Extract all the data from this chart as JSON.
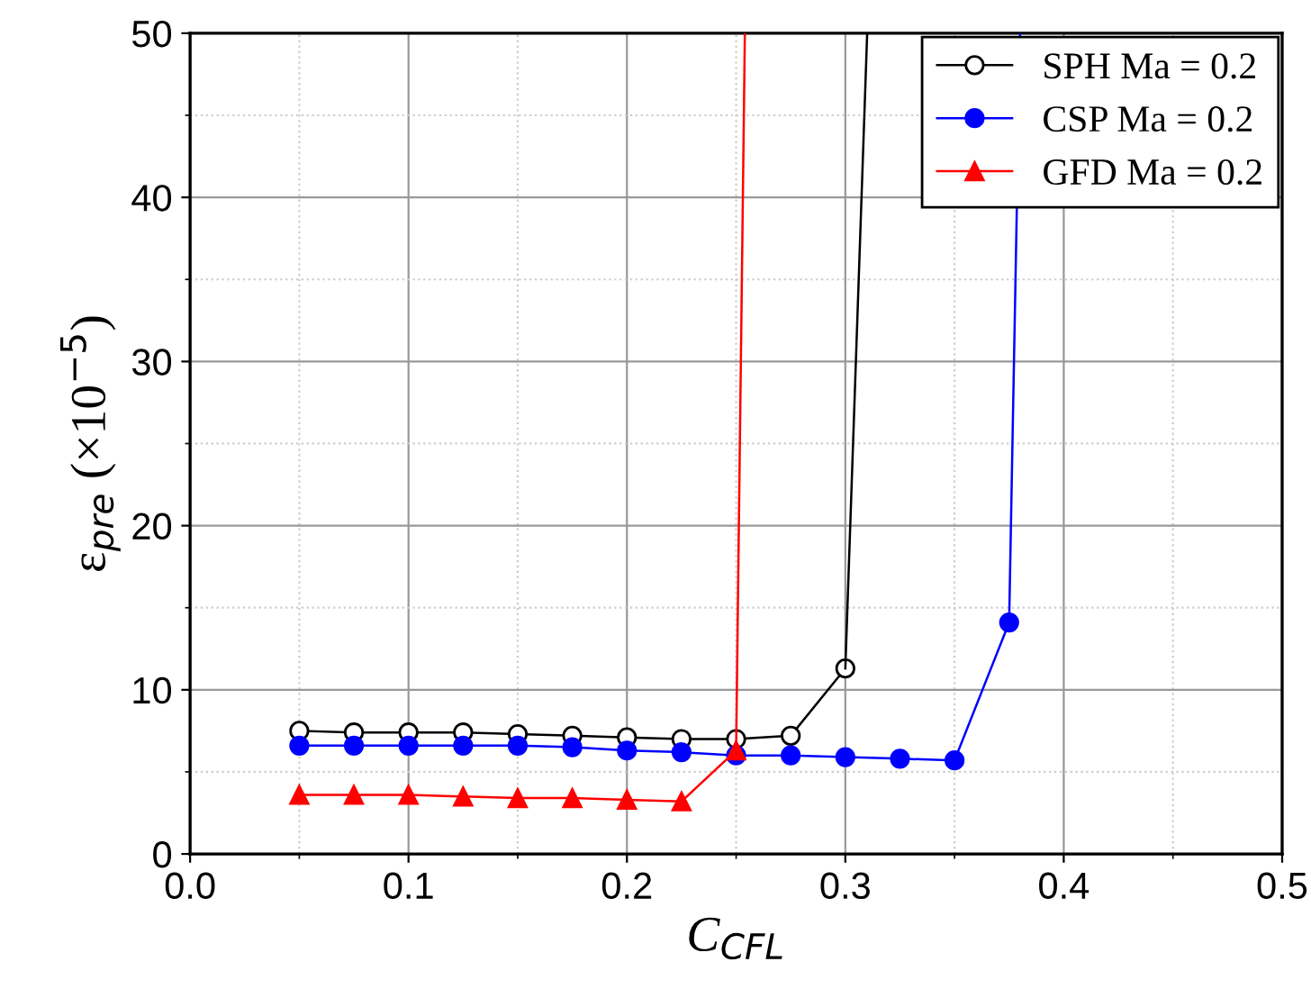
{
  "chart_data": {
    "type": "line",
    "xlabel": "C$_{CFL}$",
    "ylabel": "ε$_{pre}$ (×10$^{−5}$)",
    "x": [
      0.05,
      0.075,
      0.1,
      0.125,
      0.15,
      0.175,
      0.2,
      0.225,
      0.25,
      0.275,
      0.3,
      0.325,
      0.35,
      0.375
    ],
    "series": [
      {
        "name": "SPH Ma = 0.2",
        "color": "#000000",
        "marker": "circle",
        "values": [
          7.5,
          7.4,
          7.4,
          7.4,
          7.3,
          7.2,
          7.1,
          7.0,
          7.0,
          7.2,
          11.3,
          null,
          null,
          null
        ]
      },
      {
        "name": "CSP Ma = 0.2",
        "color": "#0000ff",
        "marker": "circle",
        "values": [
          6.6,
          6.6,
          6.6,
          6.6,
          6.6,
          6.5,
          6.3,
          6.2,
          6.0,
          6.0,
          5.9,
          5.8,
          5.7,
          14.1
        ]
      },
      {
        "name": "GFD Ma = 0.2",
        "color": "#ff0000",
        "marker": "triangle",
        "values": [
          3.6,
          3.6,
          3.6,
          3.5,
          3.4,
          3.4,
          3.3,
          3.2,
          6.3,
          null,
          null,
          null,
          null,
          null
        ]
      },
      {
        "type": "line",
        "color": "#000000",
        "marker": "none",
        "x": [
          0.3,
          0.31
        ],
        "values": [
          11.3,
          50
        ]
      },
      {
        "type": "line",
        "color": "#0000ff",
        "marker": "none",
        "x": [
          0.375,
          0.38
        ],
        "values": [
          14.1,
          50
        ]
      },
      {
        "type": "line",
        "color": "#ff0000",
        "marker": "none",
        "x": [
          0.25,
          0.254
        ],
        "values": [
          6.3,
          50
        ]
      }
    ],
    "xlim": [
      0.0,
      0.5
    ],
    "xticks": [
      {
        "value": 0.0,
        "label": "0.0"
      },
      0.1,
      0.2,
      0.3,
      0.4,
      0.5
    ],
    "ylim": [
      0,
      50
    ],
    "yticks": [
      0,
      10,
      20,
      30,
      40,
      50
    ],
    "grid": true,
    "legend": "top right",
    "line_style": "solid"
  }
}
